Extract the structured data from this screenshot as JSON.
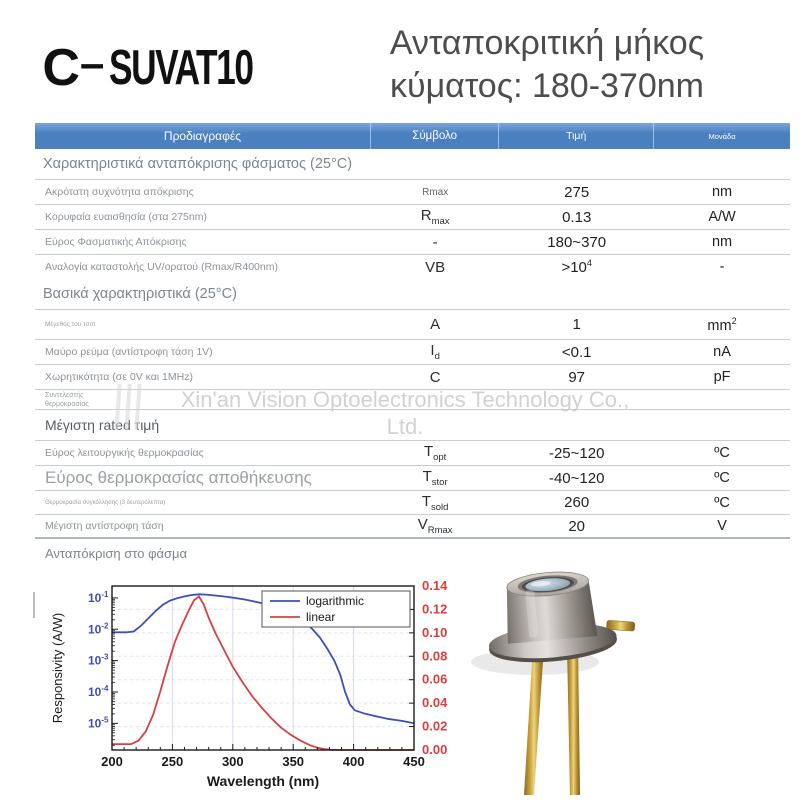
{
  "header": {
    "logo_prefix": "C",
    "logo_dash": "–",
    "logo_model": "SUVAT10",
    "title_line1": "Ανταποκριτική μήκος",
    "title_line2": "κύματος: 180-370nm"
  },
  "watermark": {
    "line1": "Xin'an Vision Optoelectronics Technology Co.,",
    "line2": "Ltd."
  },
  "table": {
    "headers": [
      "Προδιαγραφές",
      "Σύμβολο",
      "Τιμή",
      "Μονάδα"
    ],
    "header_bg": "#4b80c0",
    "rows": [
      {
        "type": "section",
        "label": "Χαρακτηριστικά ανταπόκρισης φάσματος (25°C)"
      },
      {
        "type": "row",
        "label": "Ακρότατη συχνότητα απόκρισης",
        "label_class": "small",
        "sym": "Rmax",
        "sym_class": "plain",
        "value": "275",
        "unit": "nm"
      },
      {
        "type": "row",
        "label": "Κορυφαία ευαισθησία (στα 275nm)",
        "label_class": "small",
        "sym": "R",
        "sub": "max",
        "value": "0.13",
        "unit": "A/W"
      },
      {
        "type": "row",
        "label": "Εύρος Φασματικής Απόκρισης",
        "label_class": "small",
        "sym": "-",
        "value": "180~370",
        "unit": "nm"
      },
      {
        "type": "row",
        "label": "Αναλογία καταστολής UV/ορατού (Rmax/R400nm)",
        "label_class": "small",
        "sym": "VB",
        "value": ">10",
        "value_sup": "4",
        "unit": "-"
      },
      {
        "type": "section",
        "label": "Βασικά χαρακτηριστικά (25°C)"
      },
      {
        "type": "row",
        "label": "Μέγεθος του τσιπ",
        "label_class": "tiny",
        "sym": "A",
        "value": "1",
        "unit": "mm",
        "unit_sup": "2"
      },
      {
        "type": "row",
        "label": "Μαύρο ρεύμα (αντίστροφη τάση 1V)",
        "label_class": "small",
        "sym": "I",
        "sub": "d",
        "value": "<0.1",
        "unit": "nA"
      },
      {
        "type": "row",
        "label": "Χωρητικότητα (σε 0V και 1MHz)",
        "label_class": "small",
        "sym": "C",
        "value": "97",
        "unit": "pF"
      },
      {
        "type": "row",
        "label": "Συντελεστής θερμοκρασίας",
        "label_class": "tiny2"
      },
      {
        "type": "row",
        "label": "Μέγιστη rated τιμή",
        "label_class": "medium"
      },
      {
        "type": "row",
        "label": "Εύρος λειτουργικής θερμοκρασίας",
        "label_class": "small",
        "sym": "T",
        "sub": "opt",
        "value": "-25~120",
        "unit": "ºC"
      },
      {
        "type": "row",
        "label": "Εύρος θερμοκρασίας αποθήκευσης",
        "label_class": "large",
        "sym": "T",
        "sub": "stor",
        "value": "-40~120",
        "unit": "ºC"
      },
      {
        "type": "row",
        "label": "Θερμοκρασία συγκόλλησης (3 δευτερόλεπτα)",
        "label_class": "xtiny",
        "sym": "T",
        "sub": "sold",
        "value": "260",
        "unit": "ºC"
      },
      {
        "type": "row",
        "label": "Μέγιστη αντίστροφη τάση",
        "label_class": "small",
        "sym": "V",
        "sub": "Rmax",
        "value": "20",
        "unit": "V"
      }
    ]
  },
  "chart_section": {
    "label": "Ανταπόκριση στο φάσμα"
  },
  "chart_data": {
    "type": "line",
    "title": "Ανταπόκριση στο φάσμα",
    "xlabel": "Wavelength (nm)",
    "ylabel_left": "Responsivity (A/W)",
    "x_range": [
      200,
      450
    ],
    "x_ticks": [
      200,
      250,
      300,
      350,
      400,
      450
    ],
    "y_left_scale": "log",
    "y_left_tick_exponents": [
      -1,
      -2,
      -3,
      -4,
      -5
    ],
    "y_left_range_log": [
      -5.85,
      -0.62
    ],
    "y_right_range": [
      0,
      0.14
    ],
    "y_right_ticks": [
      0.0,
      0.02,
      0.04,
      0.06,
      0.08,
      0.1,
      0.12,
      0.14
    ],
    "legend": [
      "logarithmic",
      "linear"
    ],
    "legend_position": "top-right",
    "grid": true,
    "colors": {
      "logarithmic": "#3c50b4",
      "linear": "#d84040"
    },
    "series": [
      {
        "name": "logarithmic",
        "axis": "left",
        "points": [
          [
            200,
            0.008
          ],
          [
            206,
            0.008
          ],
          [
            212,
            0.008
          ],
          [
            218,
            0.0085
          ],
          [
            224,
            0.013
          ],
          [
            230,
            0.022
          ],
          [
            236,
            0.038
          ],
          [
            242,
            0.06
          ],
          [
            248,
            0.082
          ],
          [
            254,
            0.098
          ],
          [
            260,
            0.112
          ],
          [
            266,
            0.124
          ],
          [
            272,
            0.13
          ],
          [
            278,
            0.128
          ],
          [
            284,
            0.12
          ],
          [
            292,
            0.112
          ],
          [
            300,
            0.102
          ],
          [
            308,
            0.092
          ],
          [
            316,
            0.08
          ],
          [
            324,
            0.068
          ],
          [
            332,
            0.056
          ],
          [
            340,
            0.044
          ],
          [
            348,
            0.033
          ],
          [
            354,
            0.025
          ],
          [
            360,
            0.017
          ],
          [
            366,
            0.01
          ],
          [
            372,
            0.0055
          ],
          [
            378,
            0.0025
          ],
          [
            384,
            0.001
          ],
          [
            389,
            0.00035
          ],
          [
            393,
            0.0001
          ],
          [
            397,
            4e-05
          ],
          [
            401,
            2.6e-05
          ],
          [
            408,
            2.1e-05
          ],
          [
            418,
            1.7e-05
          ],
          [
            428,
            1.4e-05
          ],
          [
            440,
            1.2e-05
          ],
          [
            450,
            1e-05
          ]
        ]
      },
      {
        "name": "linear",
        "axis": "right",
        "points": [
          [
            200,
            0.005
          ],
          [
            210,
            0.005
          ],
          [
            216,
            0.005
          ],
          [
            222,
            0.008
          ],
          [
            228,
            0.016
          ],
          [
            234,
            0.03
          ],
          [
            240,
            0.05
          ],
          [
            246,
            0.072
          ],
          [
            252,
            0.092
          ],
          [
            258,
            0.107
          ],
          [
            264,
            0.12
          ],
          [
            268,
            0.128
          ],
          [
            272,
            0.131
          ],
          [
            276,
            0.124
          ],
          [
            280,
            0.113
          ],
          [
            286,
            0.099
          ],
          [
            292,
            0.087
          ],
          [
            300,
            0.071
          ],
          [
            308,
            0.058
          ],
          [
            316,
            0.046
          ],
          [
            324,
            0.036
          ],
          [
            332,
            0.027
          ],
          [
            340,
            0.019
          ],
          [
            348,
            0.013
          ],
          [
            356,
            0.008
          ],
          [
            364,
            0.004
          ],
          [
            370,
            0.002
          ],
          [
            376,
            0.0008
          ],
          [
            381,
            0.0002
          ],
          [
            386,
            0
          ],
          [
            400,
            0
          ],
          [
            450,
            0
          ]
        ]
      }
    ]
  }
}
